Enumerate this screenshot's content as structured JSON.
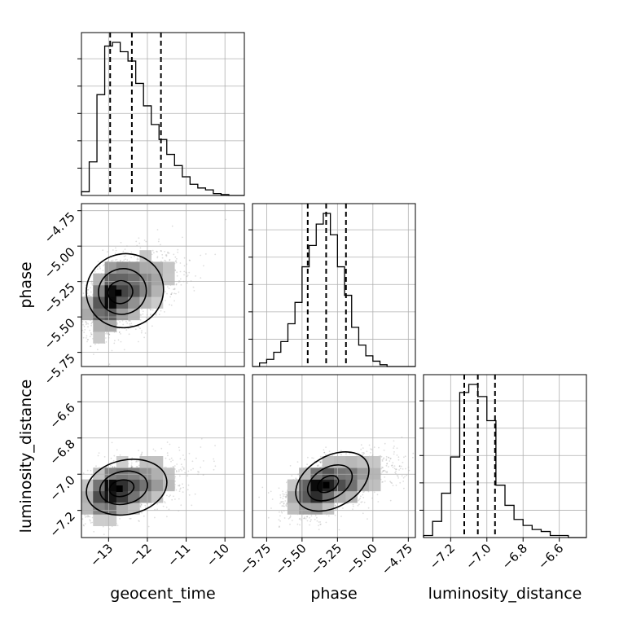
{
  "chart_data": {
    "type": "corner",
    "grid": true,
    "parameters": [
      "geocent_time",
      "phase",
      "luminosity_distance"
    ],
    "ranges": {
      "geocent_time": [
        -13.7,
        -9.5
      ],
      "phase": [
        -5.85,
        -4.7
      ],
      "luminosity_distance": [
        -7.35,
        -6.45
      ]
    },
    "ticks": {
      "geocent_time": [
        {
          "value": -13,
          "label": "−13"
        },
        {
          "value": -12,
          "label": "−12"
        },
        {
          "value": -11,
          "label": "−11"
        },
        {
          "value": -10,
          "label": "−10"
        }
      ],
      "phase": [
        {
          "value": -5.75,
          "label": "−5.75"
        },
        {
          "value": -5.5,
          "label": "−5.50"
        },
        {
          "value": -5.25,
          "label": "−5.25"
        },
        {
          "value": -5.0,
          "label": "−5.00"
        },
        {
          "value": -4.75,
          "label": "−4.75"
        }
      ],
      "luminosity_distance": [
        {
          "value": -7.2,
          "label": "−7.2"
        },
        {
          "value": -7.0,
          "label": "−7.0"
        },
        {
          "value": -6.8,
          "label": "−6.8"
        },
        {
          "value": -6.6,
          "label": "−6.6"
        }
      ]
    },
    "quantiles": {
      "geocent_time": [
        -12.96,
        -12.4,
        -11.65
      ],
      "phase": [
        -5.46,
        -5.33,
        -5.19
      ],
      "luminosity_distance": [
        -7.125,
        -7.05,
        -6.955
      ]
    },
    "marginals": {
      "geocent_time": {
        "edges": [
          -13.7,
          -13.5,
          -13.3,
          -13.1,
          -12.9,
          -12.7,
          -12.5,
          -12.3,
          -12.1,
          -11.9,
          -11.7,
          -11.5,
          -11.3,
          -11.1,
          -10.9,
          -10.7,
          -10.5,
          -10.3,
          -10.1,
          -9.9,
          -9.7,
          -9.5
        ],
        "counts": [
          2,
          18,
          54,
          80,
          82,
          77,
          72,
          60,
          48,
          38,
          30,
          22,
          16,
          10,
          6,
          4,
          3,
          1,
          0.5,
          0,
          0
        ]
      },
      "phase": {
        "edges": [
          -5.85,
          -5.8,
          -5.75,
          -5.7,
          -5.65,
          -5.6,
          -5.55,
          -5.5,
          -5.45,
          -5.4,
          -5.35,
          -5.3,
          -5.25,
          -5.2,
          -5.15,
          -5.1,
          -5.05,
          -5.0,
          -4.95,
          -4.9,
          -4.85,
          -4.8,
          -4.75,
          -4.7
        ],
        "counts": [
          0,
          2,
          4,
          8,
          14,
          24,
          36,
          56,
          68,
          80,
          86,
          74,
          56,
          40,
          22,
          12,
          6,
          3,
          1,
          0,
          0,
          0,
          0
        ]
      },
      "luminosity_distance": {
        "edges": [
          -7.35,
          -7.3,
          -7.25,
          -7.2,
          -7.15,
          -7.1,
          -7.05,
          -7.0,
          -6.95,
          -6.9,
          -6.85,
          -6.8,
          -6.75,
          -6.7,
          -6.65,
          -6.6,
          -6.55,
          -6.5,
          -6.45
        ],
        "counts": [
          1,
          8,
          22,
          40,
          72,
          76,
          70,
          58,
          26,
          16,
          9,
          6,
          4,
          3,
          1,
          1,
          0,
          0
        ]
      }
    },
    "joint": {
      "phase_vs_geocent_time": {
        "center": [
          -12.75,
          -5.33
        ],
        "sd": [
          0.45,
          0.14
        ],
        "rho": 0.5,
        "contour_levels": [
          {
            "rx": 1.0,
            "ry": 0.26,
            "angle": -18
          },
          {
            "rx": 0.62,
            "ry": 0.16,
            "angle": -18
          },
          {
            "rx": 0.32,
            "ry": 0.08,
            "angle": -18
          }
        ]
      },
      "luminosity_distance_vs_geocent_time": {
        "center": [
          -12.72,
          -7.08
        ],
        "sd": [
          0.45,
          0.08
        ],
        "rho": 0.45,
        "contour_levels": [
          {
            "rx": 1.05,
            "ry": 0.15,
            "angle": -12
          },
          {
            "rx": 0.62,
            "ry": 0.09,
            "angle": -12
          },
          {
            "rx": 0.32,
            "ry": 0.045,
            "angle": -12
          }
        ]
      },
      "luminosity_distance_vs_phase": {
        "center": [
          -5.33,
          -7.06
        ],
        "sd": [
          0.13,
          0.08
        ],
        "rho": 0.55,
        "contour_levels": [
          {
            "rx": 0.28,
            "ry": 0.14,
            "angle": -30
          },
          {
            "rx": 0.17,
            "ry": 0.085,
            "angle": -30
          },
          {
            "rx": 0.08,
            "ry": 0.04,
            "angle": -30
          }
        ]
      }
    }
  }
}
